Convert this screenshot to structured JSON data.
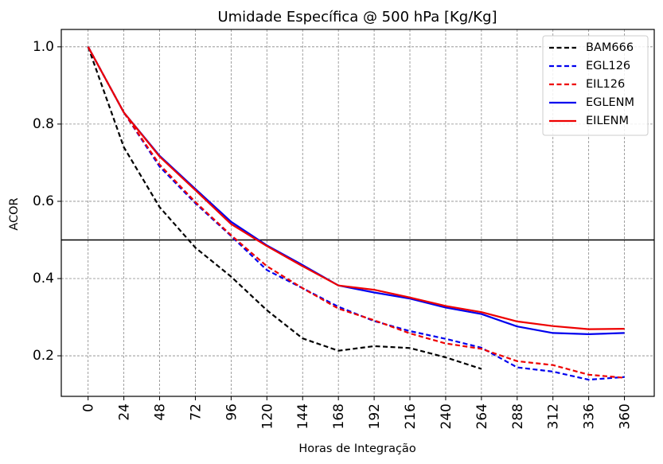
{
  "chart_data": {
    "type": "line",
    "title": "Umidade Específica @ 500 hPa [Kg/Kg]",
    "xlabel": "Horas de Integração",
    "ylabel": "ACOR",
    "x": [
      0,
      24,
      48,
      72,
      96,
      120,
      144,
      168,
      192,
      216,
      240,
      264,
      288,
      312,
      336,
      360
    ],
    "xticks": [
      "0",
      "24",
      "48",
      "72",
      "96",
      "120",
      "144",
      "168",
      "192",
      "216",
      "240",
      "264",
      "288",
      "312",
      "336",
      "360"
    ],
    "xlim": [
      -18,
      380
    ],
    "yticks": [
      "0.2",
      "0.4",
      "0.6",
      "0.8",
      "1.0"
    ],
    "ylim": [
      0.095,
      1.045
    ],
    "reference_line": 0.5,
    "grid": true,
    "legend_position": "top-right",
    "series": [
      {
        "name": "BAM666",
        "color": "#000000",
        "style": "dashed",
        "values": [
          1.0,
          0.74,
          0.585,
          0.48,
          0.405,
          0.318,
          0.245,
          0.213,
          0.225,
          0.22,
          0.196,
          0.166,
          null,
          null,
          null,
          null
        ]
      },
      {
        "name": "EGL126",
        "color": "#0000ee",
        "style": "dashed",
        "values": [
          1.0,
          0.83,
          0.69,
          0.595,
          0.51,
          0.422,
          0.375,
          0.327,
          0.29,
          0.264,
          0.244,
          0.221,
          0.17,
          0.159,
          0.138,
          0.145
        ]
      },
      {
        "name": "EIL126",
        "color": "#ee0000",
        "style": "dashed",
        "values": [
          1.0,
          0.83,
          0.695,
          0.598,
          0.512,
          0.432,
          0.375,
          0.322,
          0.292,
          0.258,
          0.232,
          0.218,
          0.186,
          0.176,
          0.151,
          0.143
        ]
      },
      {
        "name": "EGLENM",
        "color": "#0000ee",
        "style": "solid",
        "values": [
          1.0,
          0.83,
          0.718,
          0.632,
          0.547,
          0.486,
          0.435,
          0.382,
          0.364,
          0.348,
          0.325,
          0.308,
          0.276,
          0.259,
          0.256,
          0.259
        ]
      },
      {
        "name": "EILENM",
        "color": "#ee0000",
        "style": "solid",
        "values": [
          1.0,
          0.83,
          0.716,
          0.629,
          0.541,
          0.484,
          0.432,
          0.382,
          0.371,
          0.351,
          0.329,
          0.313,
          0.289,
          0.277,
          0.269,
          0.27
        ]
      }
    ]
  }
}
